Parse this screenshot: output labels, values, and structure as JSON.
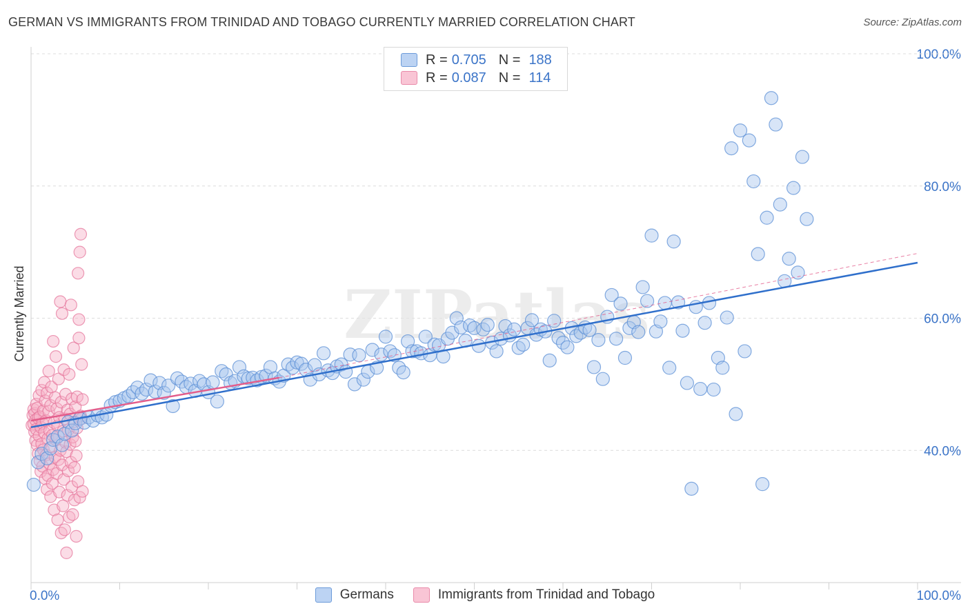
{
  "title": "GERMAN VS IMMIGRANTS FROM TRINIDAD AND TOBAGO CURRENTLY MARRIED CORRELATION CHART",
  "source": "Source: ZipAtlas.com",
  "watermark": "ZIPatlas",
  "legend": {
    "rows": [
      {
        "r_label": "R =",
        "r_value": "0.705",
        "n_label": "N =",
        "n_value": "188"
      },
      {
        "r_label": "R =",
        "r_value": "0.087",
        "n_label": "N =",
        "n_value": "114"
      }
    ]
  },
  "bottom_legend": [
    "Germans",
    "Immigrants from Trinidad and Tobago"
  ],
  "colors": {
    "blue_fill": "#a9c6ee",
    "blue_stroke": "#5b8fd6",
    "blue_line": "#2f6fcb",
    "pink_fill": "#f6b2c7",
    "pink_stroke": "#e5779c",
    "pink_line": "#e35d8b",
    "axis_text": "#3b74c8",
    "grid": "#dcdcdc"
  },
  "chart_data": {
    "type": "scatter",
    "xlabel": "",
    "ylabel": "Currently Married",
    "xlim": [
      0,
      100
    ],
    "ylim": [
      20,
      100
    ],
    "x_tick_labels": [
      "0.0%",
      "100.0%"
    ],
    "y_ticks": [
      40,
      60,
      80,
      100
    ],
    "y_tick_labels": [
      "40.0%",
      "60.0%",
      "80.0%",
      "100.0%"
    ],
    "grid": true,
    "legend_position": "top-center",
    "series": [
      {
        "name": "Germans",
        "trend": {
          "x": [
            0,
            100
          ],
          "y": [
            43.5,
            68.4
          ]
        },
        "points": [
          [
            0.3,
            34.8
          ],
          [
            0.8,
            38.2
          ],
          [
            1.2,
            39.5
          ],
          [
            1.8,
            38.8
          ],
          [
            2.2,
            40.3
          ],
          [
            2.5,
            41.6
          ],
          [
            3.0,
            42.1
          ],
          [
            3.5,
            40.8
          ],
          [
            3.8,
            42.5
          ],
          [
            4.2,
            44.3
          ],
          [
            4.6,
            43.0
          ],
          [
            5.0,
            44.1
          ],
          [
            5.5,
            44.8
          ],
          [
            6.0,
            44.2
          ],
          [
            6.5,
            45.0
          ],
          [
            7.0,
            44.5
          ],
          [
            7.5,
            45.3
          ],
          [
            8.0,
            45.0
          ],
          [
            8.5,
            45.4
          ],
          [
            9.0,
            46.8
          ],
          [
            9.5,
            47.3
          ],
          [
            10.0,
            47.5
          ],
          [
            10.5,
            47.9
          ],
          [
            11.0,
            48.2
          ],
          [
            11.5,
            48.8
          ],
          [
            12.0,
            49.5
          ],
          [
            12.5,
            48.6
          ],
          [
            13.0,
            49.2
          ],
          [
            13.5,
            50.6
          ],
          [
            14.0,
            48.9
          ],
          [
            14.5,
            50.2
          ],
          [
            15.0,
            48.7
          ],
          [
            15.5,
            49.8
          ],
          [
            16.0,
            46.7
          ],
          [
            16.5,
            50.9
          ],
          [
            17.0,
            50.4
          ],
          [
            17.5,
            49.6
          ],
          [
            18.0,
            50.1
          ],
          [
            18.5,
            49.0
          ],
          [
            19.0,
            50.5
          ],
          [
            19.5,
            50.0
          ],
          [
            20.0,
            48.8
          ],
          [
            20.5,
            50.3
          ],
          [
            21.0,
            47.4
          ],
          [
            21.5,
            52.0
          ],
          [
            22.0,
            51.5
          ],
          [
            22.5,
            50.2
          ],
          [
            23.0,
            50.5
          ],
          [
            23.5,
            52.6
          ],
          [
            24.0,
            51.2
          ],
          [
            24.5,
            50.9
          ],
          [
            25.0,
            51.0
          ],
          [
            25.5,
            50.6
          ],
          [
            26.0,
            51.1
          ],
          [
            26.5,
            51.3
          ],
          [
            27.0,
            52.6
          ],
          [
            27.5,
            50.9
          ],
          [
            28.0,
            50.4
          ],
          [
            28.5,
            51.3
          ],
          [
            29.0,
            53.0
          ],
          [
            29.5,
            52.5
          ],
          [
            30.0,
            53.3
          ],
          [
            30.5,
            53.1
          ],
          [
            31.0,
            52.2
          ],
          [
            31.5,
            50.7
          ],
          [
            32.0,
            52.9
          ],
          [
            32.5,
            51.5
          ],
          [
            33.0,
            54.7
          ],
          [
            33.5,
            52.1
          ],
          [
            34.0,
            51.7
          ],
          [
            34.5,
            52.7
          ],
          [
            35.0,
            53.0
          ],
          [
            35.5,
            51.9
          ],
          [
            36.0,
            54.5
          ],
          [
            36.5,
            50.0
          ],
          [
            37.0,
            54.4
          ],
          [
            37.5,
            50.7
          ],
          [
            38.0,
            51.9
          ],
          [
            38.5,
            55.2
          ],
          [
            39.0,
            52.5
          ],
          [
            39.5,
            54.5
          ],
          [
            40.0,
            57.2
          ],
          [
            40.5,
            55.0
          ],
          [
            41.0,
            54.4
          ],
          [
            41.5,
            52.5
          ],
          [
            42.0,
            51.8
          ],
          [
            42.5,
            56.5
          ],
          [
            43.0,
            55.0
          ],
          [
            43.5,
            55.0
          ],
          [
            44.0,
            54.7
          ],
          [
            44.5,
            57.2
          ],
          [
            45.0,
            54.4
          ],
          [
            45.5,
            56.0
          ],
          [
            46.0,
            55.9
          ],
          [
            46.5,
            54.2
          ],
          [
            47.0,
            56.9
          ],
          [
            47.5,
            57.8
          ],
          [
            48.0,
            60.0
          ],
          [
            48.5,
            58.6
          ],
          [
            49.0,
            56.6
          ],
          [
            49.5,
            58.9
          ],
          [
            50.0,
            58.5
          ],
          [
            50.5,
            55.8
          ],
          [
            51.0,
            58.3
          ],
          [
            51.5,
            59.0
          ],
          [
            52.0,
            56.3
          ],
          [
            52.5,
            55.0
          ],
          [
            53.0,
            56.9
          ],
          [
            53.5,
            58.8
          ],
          [
            54.0,
            57.4
          ],
          [
            54.5,
            58.3
          ],
          [
            55.0,
            55.5
          ],
          [
            55.5,
            56.0
          ],
          [
            56.0,
            58.5
          ],
          [
            56.5,
            59.7
          ],
          [
            57.0,
            57.5
          ],
          [
            57.5,
            58.3
          ],
          [
            58.0,
            58.0
          ],
          [
            58.5,
            53.6
          ],
          [
            59.0,
            59.6
          ],
          [
            59.5,
            57.0
          ],
          [
            60.0,
            56.3
          ],
          [
            60.5,
            55.6
          ],
          [
            61.0,
            58.5
          ],
          [
            61.5,
            57.3
          ],
          [
            62.0,
            57.8
          ],
          [
            62.5,
            58.6
          ],
          [
            63.0,
            58.2
          ],
          [
            63.5,
            52.6
          ],
          [
            64.0,
            56.7
          ],
          [
            64.5,
            50.8
          ],
          [
            65.0,
            60.2
          ],
          [
            65.5,
            63.5
          ],
          [
            66.0,
            56.9
          ],
          [
            66.5,
            62.2
          ],
          [
            67.0,
            54.0
          ],
          [
            67.5,
            58.5
          ],
          [
            68.0,
            59.4
          ],
          [
            68.5,
            57.9
          ],
          [
            69.0,
            64.7
          ],
          [
            69.5,
            62.6
          ],
          [
            70.0,
            72.5
          ],
          [
            70.5,
            58.0
          ],
          [
            71.0,
            59.5
          ],
          [
            71.5,
            62.3
          ],
          [
            72.0,
            52.5
          ],
          [
            72.5,
            71.6
          ],
          [
            73.0,
            62.4
          ],
          [
            73.5,
            58.1
          ],
          [
            74.0,
            50.2
          ],
          [
            74.5,
            34.2
          ],
          [
            75.0,
            61.7
          ],
          [
            75.5,
            49.3
          ],
          [
            76.0,
            59.3
          ],
          [
            76.5,
            62.3
          ],
          [
            77.0,
            49.2
          ],
          [
            77.5,
            54.0
          ],
          [
            78.0,
            52.5
          ],
          [
            78.5,
            60.1
          ],
          [
            79.0,
            85.7
          ],
          [
            79.5,
            45.5
          ],
          [
            80.0,
            88.4
          ],
          [
            80.5,
            55.0
          ],
          [
            81.0,
            86.9
          ],
          [
            81.5,
            80.7
          ],
          [
            82.0,
            69.7
          ],
          [
            82.5,
            34.9
          ],
          [
            83.0,
            75.2
          ],
          [
            83.5,
            93.3
          ],
          [
            84.0,
            89.3
          ],
          [
            84.5,
            77.2
          ],
          [
            85.0,
            65.6
          ],
          [
            85.5,
            69.0
          ],
          [
            86.0,
            79.7
          ],
          [
            86.5,
            66.9
          ],
          [
            87.0,
            84.4
          ],
          [
            87.5,
            75.0
          ]
        ]
      },
      {
        "name": "Immigrants from Trinidad and Tobago",
        "trend": {
          "x": [
            0,
            28
          ],
          "y": [
            44.5,
            51.0
          ]
        },
        "extension": {
          "x": [
            28,
            100
          ],
          "y": [
            51.0,
            69.8
          ]
        },
        "points": [
          [
            0.1,
            43.8
          ],
          [
            0.2,
            45.3
          ],
          [
            0.3,
            46.2
          ],
          [
            0.3,
            44.0
          ],
          [
            0.4,
            42.8
          ],
          [
            0.4,
            45.6
          ],
          [
            0.5,
            41.5
          ],
          [
            0.5,
            44.6
          ],
          [
            0.6,
            47.0
          ],
          [
            0.6,
            43.2
          ],
          [
            0.7,
            40.8
          ],
          [
            0.7,
            46.4
          ],
          [
            0.8,
            39.5
          ],
          [
            0.8,
            44.9
          ],
          [
            0.9,
            42.2
          ],
          [
            0.9,
            48.3
          ],
          [
            1.0,
            38.4
          ],
          [
            1.0,
            45.1
          ],
          [
            1.1,
            43.5
          ],
          [
            1.1,
            36.8
          ],
          [
            1.2,
            49.1
          ],
          [
            1.2,
            41.0
          ],
          [
            1.3,
            44.1
          ],
          [
            1.3,
            37.6
          ],
          [
            1.4,
            46.0
          ],
          [
            1.4,
            40.1
          ],
          [
            1.5,
            50.3
          ],
          [
            1.5,
            42.7
          ],
          [
            1.6,
            35.7
          ],
          [
            1.6,
            47.5
          ],
          [
            1.7,
            39.3
          ],
          [
            1.7,
            44.5
          ],
          [
            1.8,
            34.1
          ],
          [
            1.8,
            48.7
          ],
          [
            1.9,
            41.8
          ],
          [
            1.9,
            36.2
          ],
          [
            2.0,
            52.0
          ],
          [
            2.0,
            45.9
          ],
          [
            2.1,
            38.0
          ],
          [
            2.1,
            43.0
          ],
          [
            2.2,
            33.0
          ],
          [
            2.2,
            46.8
          ],
          [
            2.3,
            40.5
          ],
          [
            2.3,
            49.6
          ],
          [
            2.4,
            35.0
          ],
          [
            2.4,
            42.3
          ],
          [
            2.5,
            37.1
          ],
          [
            2.5,
            56.5
          ],
          [
            2.6,
            44.2
          ],
          [
            2.6,
            31.0
          ],
          [
            2.7,
            48.0
          ],
          [
            2.7,
            39.0
          ],
          [
            2.8,
            54.2
          ],
          [
            2.8,
            41.6
          ],
          [
            2.9,
            36.5
          ],
          [
            2.9,
            46.3
          ],
          [
            3.0,
            29.5
          ],
          [
            3.0,
            43.7
          ],
          [
            3.1,
            38.6
          ],
          [
            3.1,
            50.8
          ],
          [
            3.2,
            33.7
          ],
          [
            3.2,
            45.0
          ],
          [
            3.3,
            40.0
          ],
          [
            3.3,
            62.5
          ],
          [
            3.4,
            27.5
          ],
          [
            3.4,
            47.3
          ],
          [
            3.5,
            37.8
          ],
          [
            3.5,
            60.7
          ],
          [
            3.6,
            42.9
          ],
          [
            3.6,
            31.6
          ],
          [
            3.7,
            52.2
          ],
          [
            3.7,
            35.6
          ],
          [
            3.8,
            44.8
          ],
          [
            3.8,
            28.0
          ],
          [
            3.9,
            41.2
          ],
          [
            3.9,
            48.5
          ],
          [
            4.0,
            24.5
          ],
          [
            4.0,
            39.8
          ],
          [
            4.1,
            46.1
          ],
          [
            4.1,
            33.2
          ],
          [
            4.2,
            36.9
          ],
          [
            4.2,
            43.1
          ],
          [
            4.3,
            51.5
          ],
          [
            4.3,
            29.9
          ],
          [
            4.4,
            40.9
          ],
          [
            4.4,
            45.5
          ],
          [
            4.5,
            38.2
          ],
          [
            4.5,
            62.0
          ],
          [
            4.6,
            34.5
          ],
          [
            4.6,
            47.8
          ],
          [
            4.7,
            42.0
          ],
          [
            4.7,
            30.3
          ],
          [
            4.8,
            55.5
          ],
          [
            4.8,
            44.3
          ],
          [
            4.9,
            37.4
          ],
          [
            4.9,
            32.5
          ],
          [
            5.0,
            46.6
          ],
          [
            5.0,
            41.4
          ],
          [
            5.1,
            39.2
          ],
          [
            5.1,
            27.0
          ],
          [
            5.2,
            48.1
          ],
          [
            5.2,
            43.4
          ],
          [
            5.3,
            66.8
          ],
          [
            5.3,
            35.3
          ],
          [
            5.4,
            59.8
          ],
          [
            5.4,
            57.0
          ],
          [
            5.5,
            32.9
          ],
          [
            5.5,
            70.0
          ],
          [
            5.6,
            45.2
          ],
          [
            5.6,
            72.7
          ],
          [
            5.7,
            53.0
          ],
          [
            5.7,
            44.8
          ],
          [
            5.8,
            47.7
          ],
          [
            5.8,
            33.8
          ]
        ]
      }
    ]
  }
}
